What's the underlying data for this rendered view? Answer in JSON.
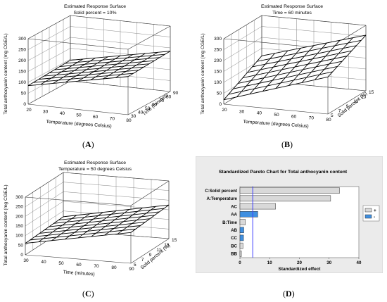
{
  "chart_data": [
    {
      "type": "surface3d",
      "panel_label": "A",
      "title": "Estimated Response Surface",
      "subtitle": "Solid percent = 10%",
      "xlabel": "Temperature (degrees Celsius)",
      "ylabel": "Time (minutes)",
      "zlabel": "Total anthocyanin content (mg CGE/L)",
      "x_ticks": [
        "20",
        "30",
        "40",
        "50",
        "60",
        "70",
        "80"
      ],
      "y_ticks": [
        "30",
        "40",
        "50",
        "60",
        "70",
        "80",
        "90"
      ],
      "z_ticks": [
        "0",
        "50",
        "100",
        "150",
        "200",
        "250",
        "300"
      ],
      "xlim": [
        20,
        80
      ],
      "ylim": [
        30,
        90
      ],
      "zlim": [
        0,
        300
      ],
      "x": [
        20,
        80
      ],
      "y": [
        30,
        90
      ],
      "z": [
        [
          85,
          95
        ],
        [
          175,
          185
        ]
      ]
    },
    {
      "type": "surface3d",
      "panel_label": "B",
      "title": "Estimated Response Surface",
      "subtitle": "Time = 60 minutes",
      "xlabel": "Temperature (degrees Celsius)",
      "ylabel": "Solid percent (%)",
      "zlabel": "Total anthocyanin content (mg CGE/L)",
      "x_ticks": [
        "20",
        "30",
        "40",
        "50",
        "60",
        "70",
        "80"
      ],
      "y_ticks": [
        "5",
        "7",
        "9",
        "11",
        "13",
        "15"
      ],
      "z_ticks": [
        "0",
        "50",
        "100",
        "150",
        "200",
        "250",
        "300"
      ],
      "xlim": [
        20,
        80
      ],
      "ylim": [
        5,
        15
      ],
      "zlim": [
        0,
        300
      ],
      "x": [
        20,
        80
      ],
      "y": [
        5,
        15
      ],
      "z": [
        [
          20,
          115
        ],
        [
          170,
          255
        ]
      ]
    },
    {
      "type": "surface3d",
      "panel_label": "C",
      "title": "Estimated Response Surface",
      "subtitle": "Temperature = 50 degrees Celsius",
      "xlabel": "Time (minutes)",
      "ylabel": "Solid percent (%)",
      "zlabel": "Total anthocyanin content (mg CGE/L)",
      "x_ticks": [
        "30",
        "40",
        "50",
        "60",
        "70",
        "80",
        "90"
      ],
      "y_ticks": [
        "5",
        "7",
        "9",
        "11",
        "13",
        "15"
      ],
      "z_ticks": [
        "0",
        "50",
        "100",
        "150",
        "200",
        "250",
        "300"
      ],
      "xlim": [
        30,
        90
      ],
      "ylim": [
        5,
        15
      ],
      "zlim": [
        0,
        300
      ],
      "x": [
        30,
        90
      ],
      "y": [
        5,
        15
      ],
      "z": [
        [
          60,
          70
        ],
        [
          160,
          175
        ]
      ]
    },
    {
      "type": "bar",
      "panel_label": "D",
      "title": "Standardized Pareto Chart for Total anthocyanin content",
      "xlabel": "Standardized effect",
      "x_ticks": [
        "0",
        "10",
        "20",
        "30",
        "40"
      ],
      "xlim": [
        0,
        40
      ],
      "reference_line": 4.3,
      "categories": [
        "C:Solid percent",
        "A:Temperature",
        "AC",
        "AA",
        "B:Time",
        "AB",
        "CC",
        "BC",
        "BB"
      ],
      "values": [
        33.5,
        30.5,
        12.0,
        6.0,
        1.8,
        1.3,
        1.2,
        1.0,
        0.5
      ],
      "signs": [
        "+",
        "+",
        "+",
        "-",
        "+",
        "-",
        "-",
        "+",
        "+"
      ],
      "legend": [
        "+",
        "-"
      ],
      "legend_position": "right",
      "colors": {
        "positive": "#d9d9d9",
        "negative": "#3f8fe0",
        "panel_bg": "#ebebeb",
        "refline": "#4040ff"
      }
    }
  ]
}
